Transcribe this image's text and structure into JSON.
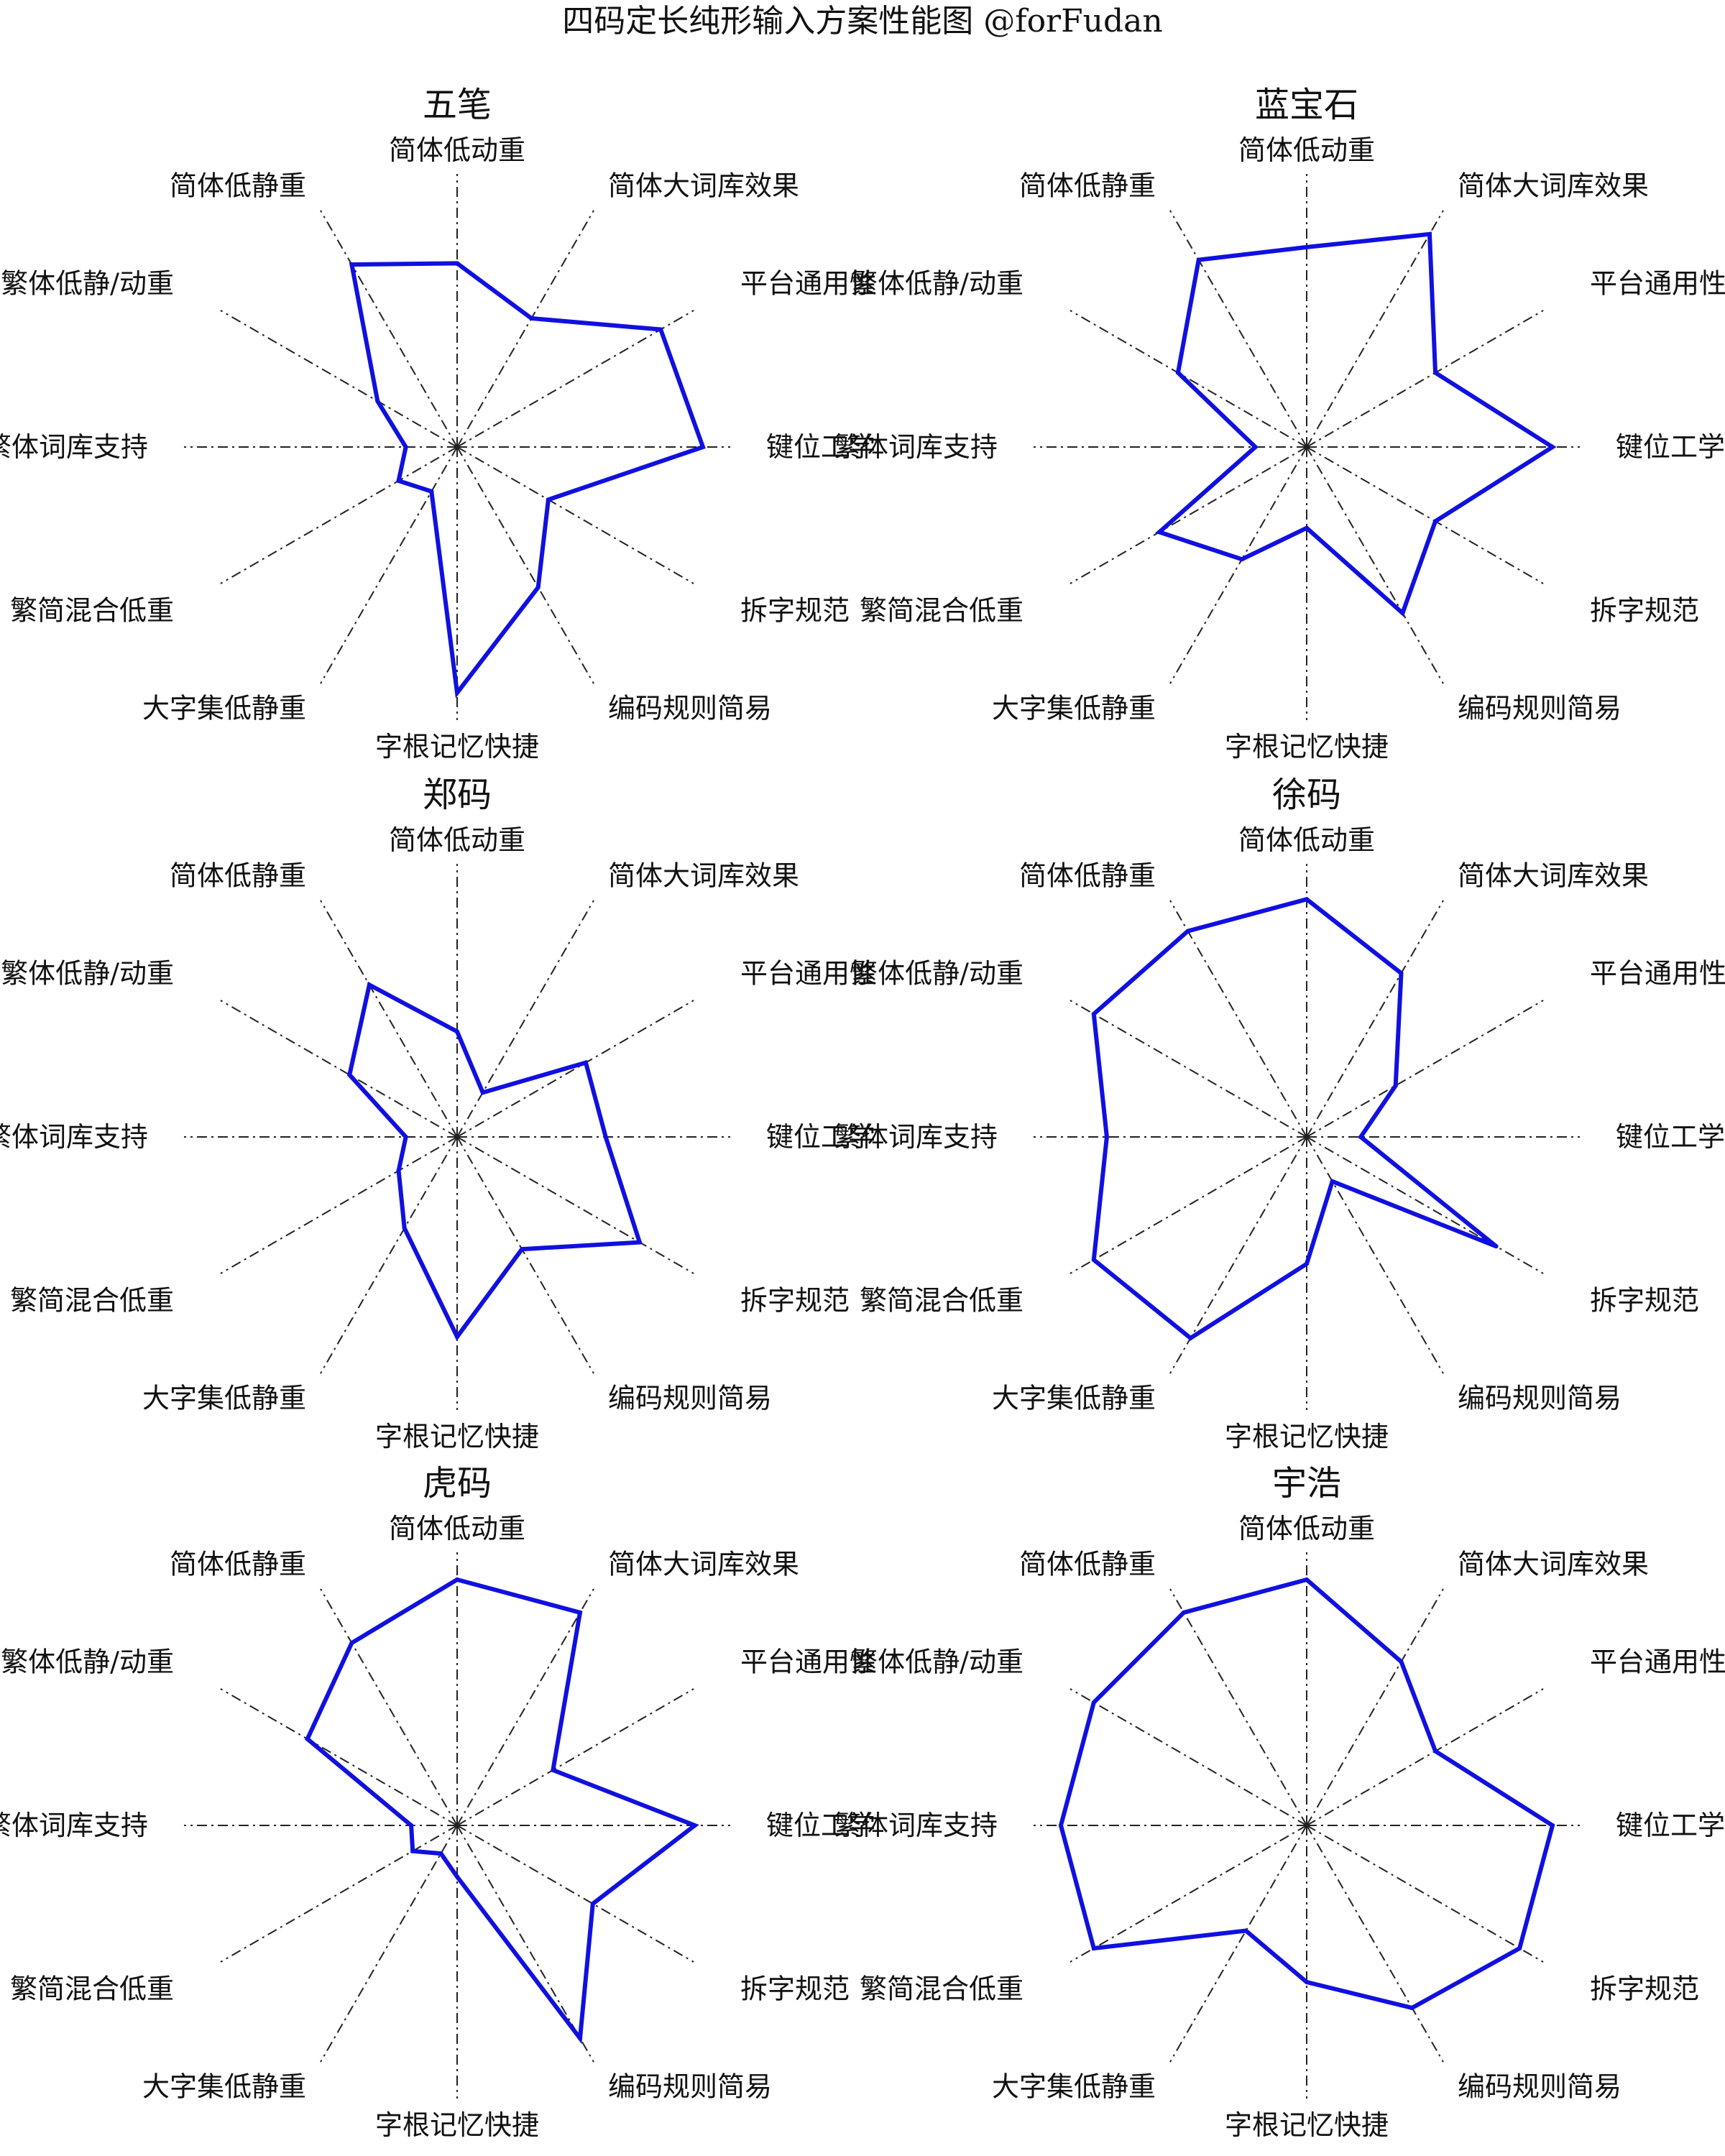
{
  "title": "四码定长纯形输入方案性能图 @forFudan",
  "colors": {
    "series": "#1010e0",
    "axis": "#222222",
    "background": "#ffffff"
  },
  "chart_data": [
    {
      "type": "radar",
      "title": "五笔",
      "axes": [
        "简体低动重",
        "简体大词库效果",
        "平台通用性",
        "键位工学",
        "拆字规范",
        "编码规则简易",
        "字根记忆快捷",
        "大字集低静重",
        "繁简混合低重",
        "繁体词库支持",
        "繁体低静/动重",
        "简体低静重"
      ],
      "values": [
        0.68,
        0.55,
        0.87,
        0.91,
        0.39,
        0.6,
        0.91,
        0.19,
        0.25,
        0.19,
        0.34,
        0.78
      ],
      "range": [
        0,
        1
      ]
    },
    {
      "type": "radar",
      "title": "蓝宝石",
      "axes": [
        "简体低动重",
        "简体大词库效果",
        "平台通用性",
        "键位工学",
        "拆字规范",
        "编码规则简易",
        "字根记忆快捷",
        "大字集低静重",
        "繁简混合低重",
        "繁体词库支持",
        "繁体低静/动重",
        "简体低静重"
      ],
      "values": [
        0.74,
        0.91,
        0.55,
        0.91,
        0.55,
        0.71,
        0.3,
        0.48,
        0.63,
        0.19,
        0.55,
        0.8
      ],
      "range": [
        0,
        1
      ]
    },
    {
      "type": "radar",
      "title": "郑码",
      "axes": [
        "简体低动重",
        "简体大词库效果",
        "平台通用性",
        "键位工学",
        "拆字规范",
        "编码规则简易",
        "字根记忆快捷",
        "大字集低静重",
        "繁简混合低重",
        "繁体词库支持",
        "繁体低静/动重",
        "简体低静重"
      ],
      "values": [
        0.39,
        0.19,
        0.55,
        0.55,
        0.78,
        0.48,
        0.74,
        0.39,
        0.25,
        0.19,
        0.46,
        0.65
      ],
      "range": [
        0,
        1
      ]
    },
    {
      "type": "radar",
      "title": "徐码",
      "axes": [
        "简体低动重",
        "简体大词库效果",
        "平台通用性",
        "键位工学",
        "拆字规范",
        "编码规则简易",
        "字根记忆快捷",
        "大字集低静重",
        "繁简混合低重",
        "繁体词库支持",
        "繁体低静/动重",
        "简体低静重"
      ],
      "values": [
        0.88,
        0.7,
        0.38,
        0.2,
        0.81,
        0.19,
        0.47,
        0.86,
        0.91,
        0.74,
        0.91,
        0.88
      ],
      "range": [
        0,
        1
      ]
    },
    {
      "type": "radar",
      "title": "虎码",
      "axes": [
        "简体低动重",
        "简体大词库效果",
        "平台通用性",
        "键位工学",
        "拆字规范",
        "编码规则简易",
        "字根记忆快捷",
        "大字集低静重",
        "繁简混合低重",
        "繁体词库支持",
        "繁体低静/动重",
        "简体低静重"
      ],
      "values": [
        0.91,
        0.91,
        0.41,
        0.88,
        0.58,
        0.91,
        0.19,
        0.12,
        0.19,
        0.17,
        0.64,
        0.78
      ],
      "range": [
        0,
        1
      ]
    },
    {
      "type": "radar",
      "title": "宇浩",
      "axes": [
        "简体低动重",
        "简体大词库效果",
        "平台通用性",
        "键位工学",
        "拆字规范",
        "编码规则简易",
        "字根记忆快捷",
        "大字集低静重",
        "繁简混合低重",
        "繁体词库支持",
        "繁体低静/动重",
        "简体低静重"
      ],
      "values": [
        0.91,
        0.7,
        0.55,
        0.91,
        0.91,
        0.78,
        0.58,
        0.45,
        0.91,
        0.91,
        0.91,
        0.91
      ],
      "range": [
        0,
        1
      ]
    }
  ]
}
